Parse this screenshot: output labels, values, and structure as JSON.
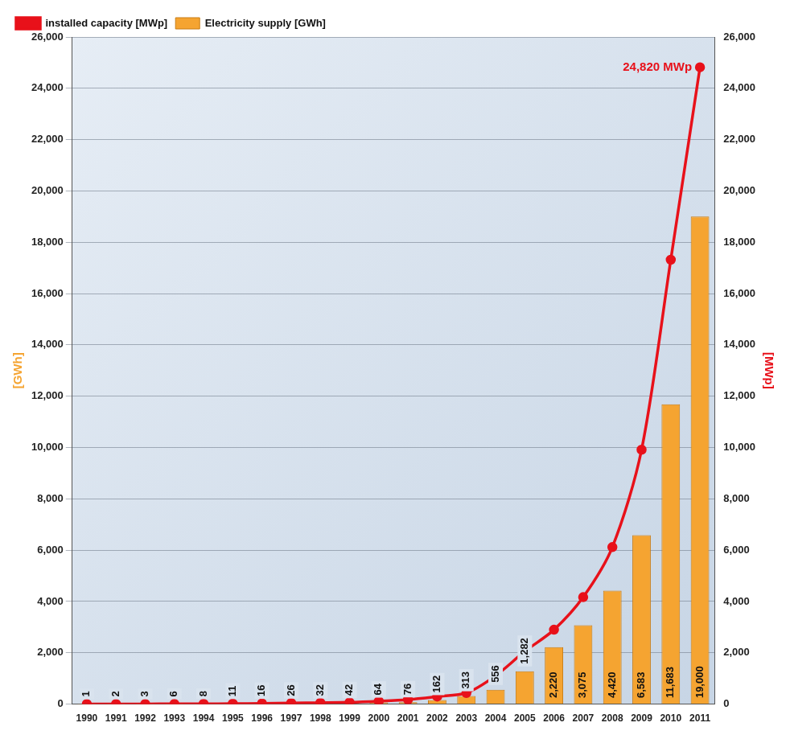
{
  "chart_data": {
    "type": "bar",
    "categories": [
      "1990",
      "1991",
      "1992",
      "1993",
      "1994",
      "1995",
      "1996",
      "1997",
      "1998",
      "1999",
      "2000",
      "2001",
      "2002",
      "2003",
      "2004",
      "2005",
      "2006",
      "2007",
      "2008",
      "2009",
      "2010",
      "2011"
    ],
    "series": [
      {
        "name": "Electricity supply [GWh]",
        "type": "bar",
        "color": "#f5a431",
        "values": [
          1,
          2,
          3,
          6,
          8,
          11,
          16,
          26,
          32,
          42,
          64,
          76,
          162,
          313,
          556,
          1282,
          2220,
          3075,
          4420,
          6583,
          11683,
          19000
        ],
        "data_labels": true,
        "value_labels": [
          "1",
          "2",
          "3",
          "6",
          "8",
          "11",
          "16",
          "26",
          "32",
          "42",
          "64",
          "76",
          "162",
          "313",
          "556",
          "1,282",
          "2,220",
          "3,075",
          "4,420",
          "6,583",
          "11,683",
          "19,000"
        ]
      },
      {
        "name": "installed capacity [MWp]",
        "type": "line",
        "axis": "y2",
        "color": "#e8111a",
        "marker": "circle",
        "line_style": "solid",
        "values": [
          2,
          2,
          6,
          9,
          12,
          18,
          28,
          42,
          54,
          70,
          114,
          176,
          296,
          435,
          1105,
          2056,
          2899,
          4170,
          6120,
          9914,
          17320,
          24820
        ]
      }
    ],
    "y_label": "[GWh]",
    "y2_label": "[MWp]",
    "ylim": [
      0,
      26000
    ],
    "yticks": [
      0,
      {
        "value": 2000,
        "label": "2,000"
      },
      {
        "value": 4000,
        "label": "4,000"
      },
      {
        "value": 6000,
        "label": "6,000"
      },
      {
        "value": 8000,
        "label": "8,000"
      },
      {
        "value": 10000,
        "label": "10,000"
      },
      {
        "value": 12000,
        "label": "12,000"
      },
      {
        "value": 14000,
        "label": "14,000"
      },
      {
        "value": 16000,
        "label": "16,000"
      },
      {
        "value": 18000,
        "label": "18,000"
      },
      {
        "value": 20000,
        "label": "20,000"
      },
      {
        "value": 22000,
        "label": "22,000"
      },
      {
        "value": 24000,
        "label": "24,000"
      },
      {
        "value": 26000,
        "label": "26,000"
      }
    ],
    "y2lim": [
      0,
      26000
    ],
    "y2ticks": [
      0,
      {
        "value": 2000,
        "label": "2,000"
      },
      {
        "value": 4000,
        "label": "4,000"
      },
      {
        "value": 6000,
        "label": "6,000"
      },
      {
        "value": 8000,
        "label": "8,000"
      },
      {
        "value": 10000,
        "label": "10,000"
      },
      {
        "value": 12000,
        "label": "12,000"
      },
      {
        "value": 14000,
        "label": "14,000"
      },
      {
        "value": 16000,
        "label": "16,000"
      },
      {
        "value": 18000,
        "label": "18,000"
      },
      {
        "value": 20000,
        "label": "20,000"
      },
      {
        "value": 22000,
        "label": "22,000"
      },
      {
        "value": 24000,
        "label": "24,000"
      },
      {
        "value": 26000,
        "label": "26,000"
      }
    ],
    "annotations": [
      {
        "text": "24,820 MWp",
        "x": "2011",
        "y": 24820,
        "axis": "y2"
      }
    ],
    "grid": true,
    "legend": "upper left"
  }
}
